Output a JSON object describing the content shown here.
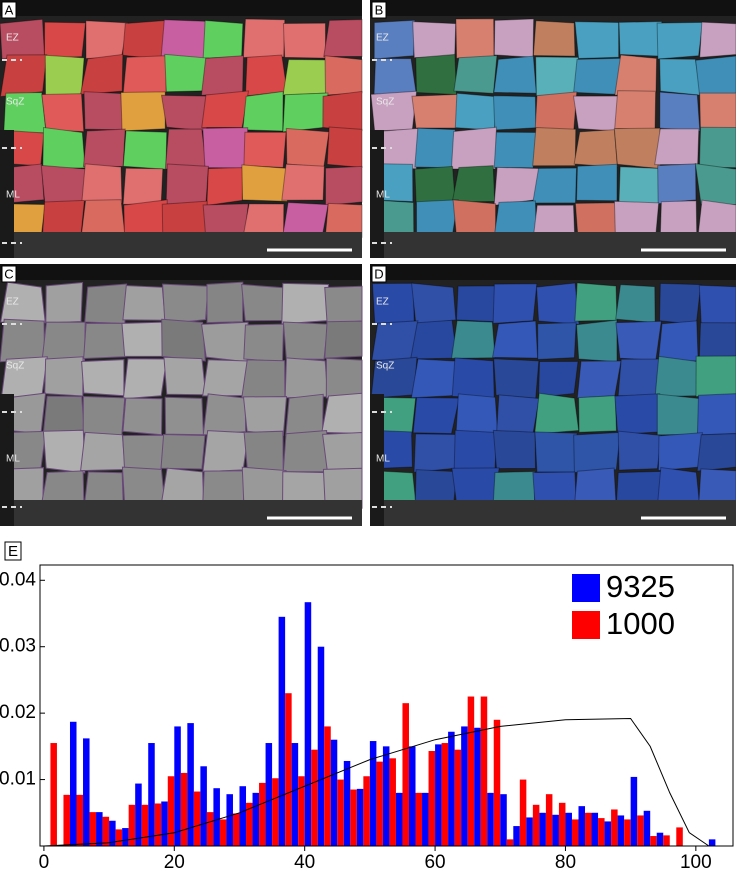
{
  "panels": [
    {
      "label": "A",
      "zones": [
        "EZ",
        "SqZ",
        "ML"
      ]
    },
    {
      "label": "B",
      "zones": [
        "EZ",
        "SqZ",
        "ML"
      ]
    },
    {
      "label": "C",
      "zones": [
        "EZ",
        "SqZ",
        "ML"
      ]
    },
    {
      "label": "D",
      "zones": [
        "EZ",
        "SqZ",
        "ML"
      ]
    }
  ],
  "chart_data": {
    "type": "histogram",
    "panel_label": "E",
    "x": [
      2,
      4,
      6,
      8,
      10,
      12,
      14,
      16,
      18,
      20,
      22,
      24,
      26,
      28,
      30,
      32,
      34,
      36,
      38,
      40,
      42,
      44,
      46,
      48,
      50,
      52,
      54,
      56,
      58,
      60,
      62,
      64,
      66,
      68,
      70,
      72,
      74,
      76,
      78,
      80,
      82,
      84,
      86,
      88,
      90,
      92,
      94,
      96,
      98,
      100,
      102
    ],
    "series": [
      {
        "name": "9325",
        "color": "#0000ff",
        "values": [
          0,
          0.0187,
          0.0162,
          0.0051,
          0.0038,
          0.0027,
          0.0094,
          0.0155,
          0.0067,
          0.018,
          0.0185,
          0.012,
          0.0087,
          0.0078,
          0.009,
          0.008,
          0.0155,
          0.0345,
          0.0155,
          0.0367,
          0.03,
          0.016,
          0.0128,
          0.0086,
          0.0158,
          0.015,
          0.008,
          0.015,
          0.008,
          0.0153,
          0.0172,
          0.018,
          0.0178,
          0.008,
          0.0078,
          0.003,
          0.0043,
          0.005,
          0.0047,
          0.005,
          0.006,
          0.005,
          0.0037,
          0.0046,
          0.0104,
          0.0053,
          0.002,
          0,
          0,
          0,
          0.001
        ]
      },
      {
        "name": "1000",
        "color": "#ff0000",
        "values": [
          0.0155,
          0.0077,
          0.0077,
          0.0051,
          0.0044,
          0.0025,
          0.0062,
          0.0062,
          0.0064,
          0.0105,
          0.011,
          0.0082,
          0.0051,
          0.004,
          0.0049,
          0.0065,
          0.0095,
          0.0102,
          0.023,
          0.0105,
          0.0145,
          0.018,
          0.01,
          0.0085,
          0.0105,
          0.0127,
          0.0132,
          0.0215,
          0.008,
          0.0143,
          0.0155,
          0.0145,
          0.0225,
          0.0225,
          0.019,
          0.001,
          0.01,
          0.0062,
          0.0078,
          0.0065,
          0.004,
          0.005,
          0.0042,
          0.0055,
          0.004,
          0.0046,
          0.0015,
          0.0016,
          0.0028,
          0,
          0
        ]
      }
    ],
    "curve": {
      "color": "#000000",
      "x": [
        0,
        10,
        20,
        30,
        40,
        50,
        60,
        70,
        80,
        90,
        93,
        96,
        99,
        102
      ],
      "values": [
        0,
        0.0005,
        0.002,
        0.005,
        0.009,
        0.013,
        0.016,
        0.018,
        0.019,
        0.0192,
        0.015,
        0.008,
        0.002,
        0
      ]
    },
    "xlim": [
      -0.6,
      105.7
    ],
    "ylim": [
      0,
      0.0423
    ],
    "xticks": [
      0,
      20,
      40,
      60,
      80,
      100
    ],
    "yticks": [
      0.01,
      0.02,
      0.03,
      0.04
    ]
  }
}
